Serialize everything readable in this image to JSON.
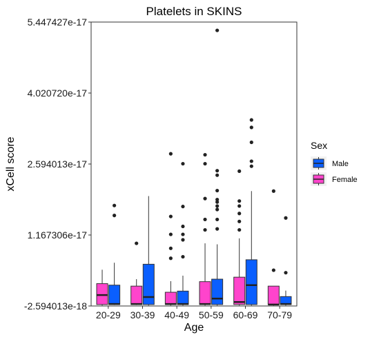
{
  "chart_data": {
    "type": "boxplot",
    "title": "Platelets in SKINS",
    "xlabel": "Age",
    "ylabel": "xCell score",
    "categories": [
      "20-29",
      "30-39",
      "40-49",
      "50-59",
      "60-69",
      "70-79"
    ],
    "yticks": [
      -2.594013e-18,
      1.167306e-17,
      2.594013e-17,
      4.02072e-17,
      5.447427e-17
    ],
    "ytick_labels": [
      "-2.594013e-18",
      "1.167306e-17",
      "2.594013e-17",
      "4.020720e-17",
      "5.447427e-17"
    ],
    "ylim": [
      -2.594013e-18,
      5.447427e-17
    ],
    "legend": {
      "title": "Sex",
      "entries": [
        {
          "name": "Male",
          "color": "#0a5fff"
        },
        {
          "name": "Female",
          "color": "#ff44cc"
        }
      ]
    },
    "series": [
      {
        "name": "Female",
        "color": "#ff44cc",
        "boxes": [
          {
            "category": "20-29",
            "whisker_low": -2.5e-18,
            "q1": -2.3e-18,
            "median": -4e-19,
            "q3": 1.9e-18,
            "whisker_high": 4.7e-18,
            "outliers": []
          },
          {
            "category": "30-39",
            "whisker_low": -2.4e-18,
            "q1": -2.3e-18,
            "median": -2.2e-18,
            "q3": 1.4e-18,
            "whisker_high": 2.8e-18,
            "outliers": [
              1e-17
            ]
          },
          {
            "category": "40-49",
            "whisker_low": -2.5e-18,
            "q1": -2.3e-18,
            "median": -2.2e-18,
            "q3": 1.7e-19,
            "whisker_high": 2.4e-18,
            "outliers": [
              2.8e-17,
              1.54e-17,
              1.18e-17,
              9e-18,
              7e-18
            ]
          },
          {
            "category": "50-59",
            "whisker_low": -2.5e-18,
            "q1": -2.3e-18,
            "median": -2.2e-18,
            "q3": 2.3e-18,
            "whisker_high": 1e-17,
            "outliers": [
              2.78e-17,
              2.6e-17,
              1.9e-17,
              1.48e-17,
              1.27e-17
            ]
          },
          {
            "category": "60-69",
            "whisker_low": -2.5e-18,
            "q1": -2.3e-18,
            "median": -1.8e-18,
            "q3": 3.2e-18,
            "whisker_high": 1.1e-17,
            "outliers": [
              2.45e-17,
              1.85e-17,
              1.75e-17,
              1.6e-17,
              1.44e-17,
              1.27e-17
            ]
          },
          {
            "category": "70-79",
            "whisker_low": -2.5e-18,
            "q1": -2.3e-18,
            "median": -2.3e-18,
            "q3": 1.4e-18,
            "whisker_high": 1.4e-18,
            "outliers": [
              2.05e-17,
              4.6e-18
            ]
          }
        ]
      },
      {
        "name": "Male",
        "color": "#0a5fff",
        "boxes": [
          {
            "category": "20-29",
            "whisker_low": -2.4e-18,
            "q1": -2.3e-18,
            "median": -2.2e-18,
            "q3": 1.6e-18,
            "whisker_high": 6.1e-18,
            "outliers": [
              1.76e-17,
              1.56e-17
            ]
          },
          {
            "category": "30-39",
            "whisker_low": -2.5e-18,
            "q1": -2.3e-18,
            "median": -8e-19,
            "q3": 5.8e-18,
            "whisker_high": 1.95e-17,
            "outliers": []
          },
          {
            "category": "40-49",
            "whisker_low": -2.5e-18,
            "q1": -2.3e-18,
            "median": -2.2e-18,
            "q3": 4e-19,
            "whisker_high": 3.5e-18,
            "outliers": [
              2.6e-17,
              1.74e-17,
              1.34e-17,
              1.18e-17,
              1.07e-17,
              7.3e-18
            ]
          },
          {
            "category": "50-59",
            "whisker_low": -2.5e-18,
            "q1": -2.3e-18,
            "median": -1.1e-18,
            "q3": 2.8e-18,
            "whisker_high": 9.8e-18,
            "outliers": [
              5.28e-17,
              2.46e-17,
              2.37e-17,
              2.06e-17,
              1.88e-17,
              1.83e-17,
              1.75e-17,
              1.68e-17,
              1.48e-17,
              1.29e-17
            ]
          },
          {
            "category": "60-69",
            "whisker_low": -2.5e-18,
            "q1": -2.3e-18,
            "median": 1.6e-18,
            "q3": 6.7e-18,
            "whisker_high": 2.05e-17,
            "outliers": [
              3.48e-17,
              3.33e-17,
              3.03e-17,
              2.65e-17,
              2.55e-17
            ]
          },
          {
            "category": "70-79",
            "whisker_low": -2.5e-18,
            "q1": -2.3e-18,
            "median": -2.2e-18,
            "q3": -7e-19,
            "whisker_high": 5e-19,
            "outliers": [
              1.51e-17,
              4.1e-18
            ]
          }
        ]
      }
    ]
  }
}
